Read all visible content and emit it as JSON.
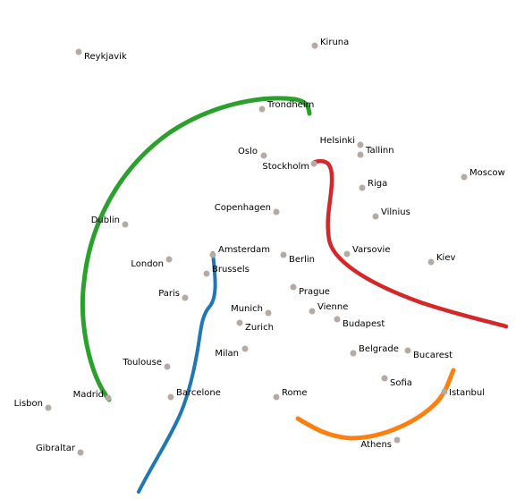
{
  "map": {
    "city_dot_color": "#b5aaa6",
    "cities": [
      {
        "name": "Reykjavik"
      },
      {
        "name": "Kiruna"
      },
      {
        "name": "Trondheim"
      },
      {
        "name": "Helsinki"
      },
      {
        "name": "Tallinn"
      },
      {
        "name": "Oslo"
      },
      {
        "name": "Stockholm"
      },
      {
        "name": "Moscow"
      },
      {
        "name": "Riga"
      },
      {
        "name": "Copenhagen"
      },
      {
        "name": "Vilnius"
      },
      {
        "name": "Dublin"
      },
      {
        "name": "Amsterdam"
      },
      {
        "name": "Berlin"
      },
      {
        "name": "Varsovie"
      },
      {
        "name": "Kiev"
      },
      {
        "name": "London"
      },
      {
        "name": "Brussels"
      },
      {
        "name": "Paris"
      },
      {
        "name": "Prague"
      },
      {
        "name": "Munich"
      },
      {
        "name": "Vienne"
      },
      {
        "name": "Zurich"
      },
      {
        "name": "Budapest"
      },
      {
        "name": "Milan"
      },
      {
        "name": "Belgrade"
      },
      {
        "name": "Bucarest"
      },
      {
        "name": "Toulouse"
      },
      {
        "name": "Sofia"
      },
      {
        "name": "Lisbon"
      },
      {
        "name": "Madrid"
      },
      {
        "name": "Barcelone"
      },
      {
        "name": "Rome"
      },
      {
        "name": "Istanbul"
      },
      {
        "name": "Gibraltar"
      },
      {
        "name": "Athens"
      }
    ],
    "routes": [
      {
        "name": "green-route",
        "color": "#2ca02c"
      },
      {
        "name": "red-route",
        "color": "#d62728"
      },
      {
        "name": "blue-route",
        "color": "#1f77b4"
      },
      {
        "name": "orange-route",
        "color": "#ff7f0e"
      }
    ]
  }
}
